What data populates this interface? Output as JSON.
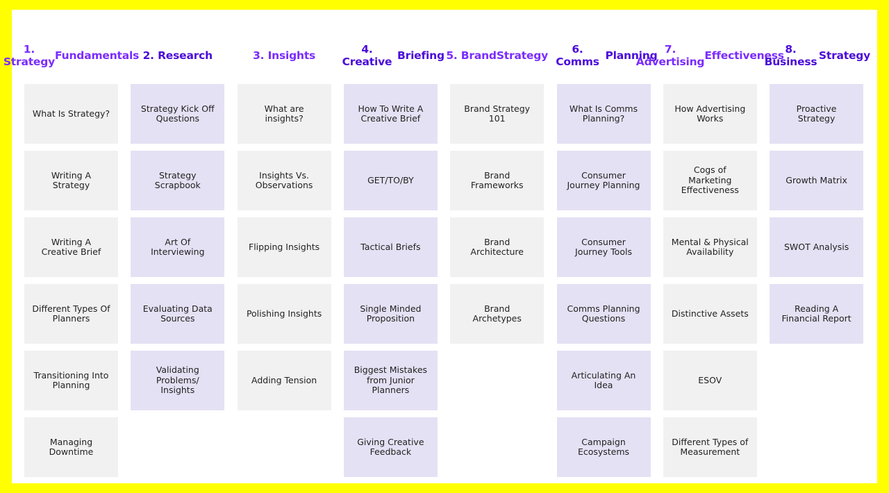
{
  "colors": {
    "frame": "#FFFF00",
    "board": "#FFFFFF",
    "title_dark": "#5000E0",
    "title_purple": "#8A2BFF",
    "card_grey": "#F1F1F1",
    "card_lavender": "#E5E1F4",
    "card_text": "#222222"
  },
  "columns": [
    {
      "title": "1. Strategy\nFundamentals",
      "title_color": "#7B2CFF",
      "card_style": "grey",
      "cards": [
        "What Is Strategy?",
        "Writing A\nStrategy",
        "Writing A\nCreative Brief",
        "Different Types Of\nPlanners",
        "Transitioning Into\nPlanning",
        "Managing\nDowntime"
      ]
    },
    {
      "title": "2. Research",
      "title_color": "#4B0BD9",
      "card_style": "lav",
      "cards": [
        "Strategy Kick Off\nQuestions",
        "Strategy\nScrapbook",
        "Art Of\nInterviewing",
        "Evaluating Data\nSources",
        "Validating\nProblems/\nInsights"
      ]
    },
    {
      "title": "3. Insights",
      "title_color": "#7B2CFF",
      "card_style": "grey",
      "cards": [
        "What are\ninsights?",
        "Insights Vs.\nObservations",
        "Flipping Insights",
        "Polishing Insights",
        "Adding Tension"
      ]
    },
    {
      "title": "4. Creative\nBriefing",
      "title_color": "#4B0BD9",
      "card_style": "lav",
      "cards": [
        "How To Write A\nCreative Brief",
        "GET/TO/BY",
        "Tactical Briefs",
        "Single Minded\nProposition",
        "Biggest Mistakes\nfrom Junior\nPlanners",
        "Giving Creative\nFeedback"
      ]
    },
    {
      "title": "5. Brand\nStrategy",
      "title_color": "#7B2CFF",
      "card_style": "grey",
      "cards": [
        "Brand Strategy\n101",
        "Brand\nFrameworks",
        "Brand\nArchitecture",
        "Brand\nArchetypes"
      ]
    },
    {
      "title": "6. Comms\nPlanning",
      "title_color": "#4B0BD9",
      "card_style": "lav",
      "cards": [
        "What Is Comms\nPlanning?",
        "Consumer\nJourney Planning",
        "Consumer\nJourney Tools",
        "Comms Planning\nQuestions",
        "Articulating An\nIdea",
        "Campaign\nEcosystems"
      ]
    },
    {
      "title": "7. Advertising\nEffectiveness",
      "title_color": "#7B2CFF",
      "card_style": "grey",
      "cards": [
        "How Advertising\nWorks",
        "Cogs of\nMarketing\nEffectiveness",
        "Mental & Physical\nAvailability",
        "Distinctive Assets",
        "ESOV",
        "Different Types of\nMeasurement"
      ]
    },
    {
      "title": "8. Business\nStrategy",
      "title_color": "#4B0BD9",
      "card_style": "lav",
      "cards": [
        "Proactive\nStrategy",
        "Growth Matrix",
        "SWOT Analysis",
        "Reading A\nFinancial Report"
      ]
    }
  ]
}
